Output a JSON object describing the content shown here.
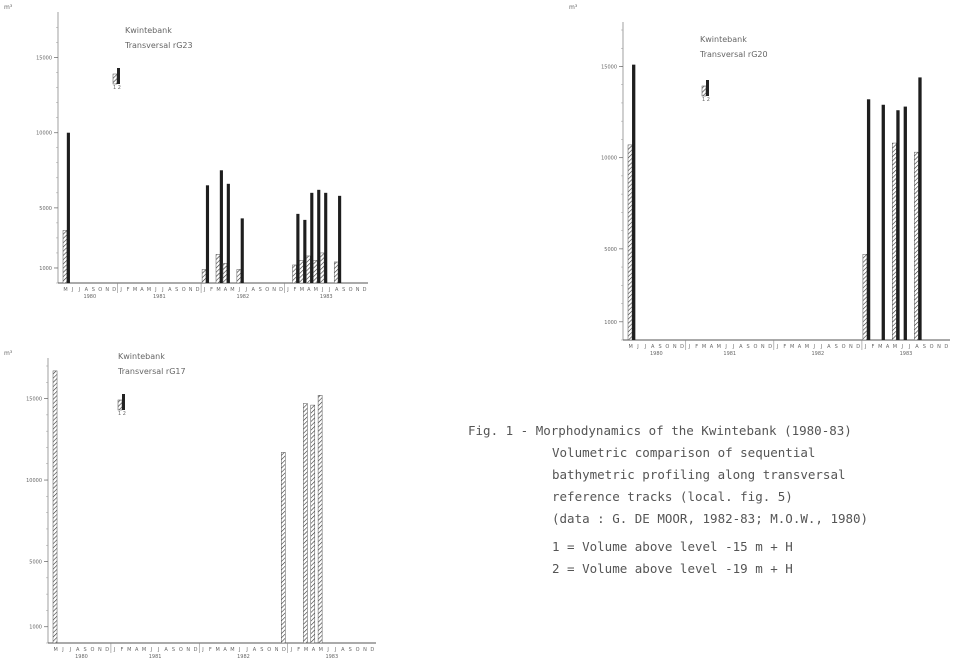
{
  "charts": [
    {
      "id": "c1",
      "frame": {
        "x": 8,
        "y": 12,
        "w": 364,
        "h": 306
      },
      "unit": "m³",
      "title": "Kwintebank",
      "subtitle": "Transversal  rG23",
      "yticks": [
        1000,
        5000,
        10000,
        15000
      ],
      "ymax": 17500,
      "legend_labels": [
        "1",
        "2"
      ],
      "months": [
        "M",
        "J",
        "J",
        "A",
        "S",
        "O",
        "N",
        "D",
        "J",
        "F",
        "M",
        "A",
        "M",
        "J",
        "J",
        "A",
        "S",
        "O",
        "N",
        "D",
        "J",
        "F",
        "M",
        "A",
        "M",
        "J",
        "J",
        "A",
        "S",
        "O",
        "N",
        "D",
        "J",
        "F",
        "M",
        "A",
        "M",
        "J",
        "J",
        "A",
        "S",
        "O",
        "N",
        "D"
      ],
      "years": [
        "1980",
        "1981",
        "1982",
        "1983"
      ]
    },
    {
      "id": "c2",
      "frame": {
        "x": 575,
        "y": 12,
        "w": 384,
        "h": 360
      },
      "unit": "m³",
      "title": "Kwintebank",
      "subtitle": "Transversal  rG20",
      "yticks": [
        1000,
        5000,
        10000,
        15000
      ],
      "ymax": 17000,
      "legend_labels": [
        "1",
        "2"
      ],
      "months": [
        "M",
        "J",
        "J",
        "A",
        "S",
        "O",
        "N",
        "D",
        "J",
        "F",
        "M",
        "A",
        "M",
        "J",
        "J",
        "A",
        "S",
        "O",
        "N",
        "D",
        "J",
        "F",
        "M",
        "A",
        "M",
        "J",
        "J",
        "A",
        "S",
        "O",
        "N",
        "D",
        "J",
        "F",
        "M",
        "A",
        "M",
        "J",
        "J",
        "A",
        "S",
        "O",
        "N",
        "D"
      ],
      "years": [
        "1980",
        "1981",
        "1982",
        "1983"
      ]
    },
    {
      "id": "c3",
      "frame": {
        "x": 8,
        "y": 346,
        "w": 376,
        "h": 320
      },
      "unit": "m³",
      "title": "Kwintebank",
      "subtitle": "Transversal  rG17",
      "yticks": [
        1000,
        5000,
        10000,
        15000
      ],
      "ymax": 17000,
      "legend_labels": [
        "1",
        "2"
      ],
      "months": [
        "M",
        "J",
        "J",
        "A",
        "S",
        "O",
        "N",
        "D",
        "J",
        "F",
        "M",
        "A",
        "M",
        "J",
        "J",
        "A",
        "S",
        "O",
        "N",
        "D",
        "J",
        "F",
        "M",
        "A",
        "M",
        "J",
        "J",
        "A",
        "S",
        "O",
        "N",
        "D",
        "J",
        "F",
        "M",
        "A",
        "M",
        "J",
        "J",
        "A",
        "S",
        "O",
        "N",
        "D"
      ],
      "years": [
        "1980",
        "1981",
        "1982",
        "1983"
      ]
    }
  ],
  "chart_data": [
    {
      "type": "bar",
      "title": "Kwintebank — Transversal rG23",
      "ylabel": "m³",
      "ylim": [
        0,
        17500
      ],
      "categories": [
        "M 1980",
        "Jan 1982",
        "Mar 1982",
        "Apr 1982",
        "Jun 1982",
        "Feb 1983",
        "Mar 1983",
        "Apr 1983",
        "May 1983",
        "Jun 1983",
        "Aug 1983"
      ],
      "series": [
        {
          "name": "1",
          "values": [
            3500,
            900,
            1900,
            1300,
            900,
            1200,
            1500,
            1800,
            1500,
            2000,
            1400
          ]
        },
        {
          "name": "2",
          "values": [
            10000,
            6500,
            7500,
            6600,
            4300,
            4600,
            4200,
            6000,
            6200,
            6000,
            5800
          ]
        }
      ]
    },
    {
      "type": "bar",
      "title": "Kwintebank — Transversal rG20",
      "ylabel": "m³",
      "ylim": [
        0,
        17000
      ],
      "categories": [
        "M 1980",
        "Jan 1983",
        "Mar 1983",
        "May 1983",
        "Jun 1983",
        "Aug 1983"
      ],
      "series": [
        {
          "name": "1",
          "values": [
            10700,
            4700,
            0,
            10800,
            0,
            10300
          ]
        },
        {
          "name": "2",
          "values": [
            15100,
            13200,
            12900,
            12600,
            12800,
            14400
          ]
        }
      ]
    },
    {
      "type": "bar",
      "title": "Kwintebank — Transversal rG17",
      "ylabel": "m³",
      "ylim": [
        0,
        17000
      ],
      "categories": [
        "M 1980",
        "Dec 1982",
        "Mar 1983",
        "Apr 1983",
        "May 1983"
      ],
      "series": [
        {
          "name": "1",
          "values": [
            16700,
            11700,
            14700,
            14600,
            15200
          ]
        }
      ]
    }
  ],
  "caption": {
    "lines": [
      "Fig. 1 - Morphodynamics of the Kwintebank (1980-83)",
      "Volumetric comparison of sequential",
      "bathymetric profiling along transversal",
      "reference tracks (local. fig. 5)",
      "(data : G. DE MOOR, 1982-83; M.O.W., 1980)"
    ],
    "legend": [
      "1 = Volume above level -15 m + H",
      "2 = Volume above level -19 m + H"
    ]
  },
  "bars_by_chart": {
    "c1": [
      {
        "m": 0,
        "s1": 3500,
        "s2": 10000
      },
      {
        "m": 20,
        "s1": 900,
        "s2": 6500
      },
      {
        "m": 22,
        "s1": 1900,
        "s2": 7500
      },
      {
        "m": 23,
        "s1": 1300,
        "s2": 6600
      },
      {
        "m": 25,
        "s1": 900,
        "s2": 4300
      },
      {
        "m": 33,
        "s1": 1200,
        "s2": 4600
      },
      {
        "m": 34,
        "s1": 1500,
        "s2": 4200
      },
      {
        "m": 35,
        "s1": 1800,
        "s2": 6000
      },
      {
        "m": 36,
        "s1": 1500,
        "s2": 6200
      },
      {
        "m": 37,
        "s1": 2000,
        "s2": 6000
      },
      {
        "m": 39,
        "s1": 1400,
        "s2": 5800
      }
    ],
    "c2": [
      {
        "m": 0,
        "s1": 10700,
        "s2": 15100
      },
      {
        "m": 32,
        "s1": 4700,
        "s2": 13200
      },
      {
        "m": 34,
        "s1": 0,
        "s2": 12900
      },
      {
        "m": 36,
        "s1": 10800,
        "s2": 12600
      },
      {
        "m": 37,
        "s1": 0,
        "s2": 12800
      },
      {
        "m": 39,
        "s1": 10300,
        "s2": 14400
      }
    ],
    "c3": [
      {
        "m": 0,
        "s1": 16700,
        "s2": 0
      },
      {
        "m": 31,
        "s1": 11700,
        "s2": 0
      },
      {
        "m": 34,
        "s1": 14700,
        "s2": 0
      },
      {
        "m": 35,
        "s1": 14600,
        "s2": 0
      },
      {
        "m": 36,
        "s1": 15200,
        "s2": 0
      }
    ]
  }
}
